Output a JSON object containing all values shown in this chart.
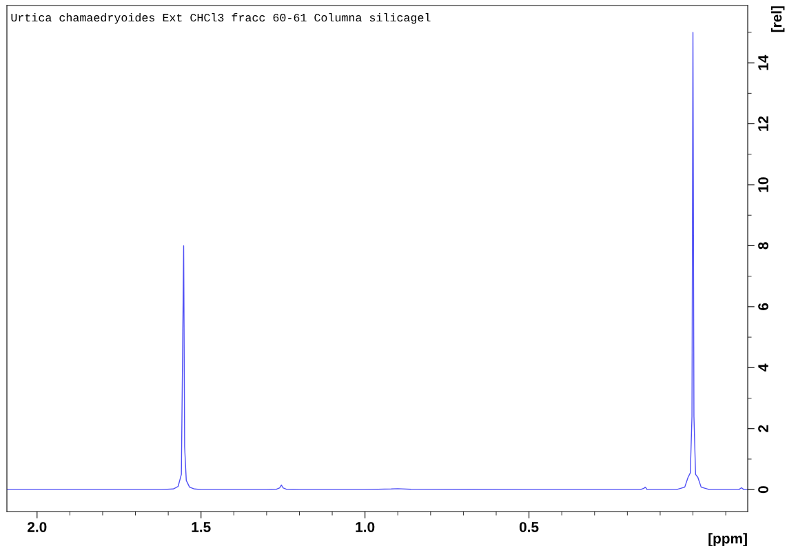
{
  "chart_data": {
    "type": "line",
    "xlabel": "[ppm]",
    "ylabel": "[rel]",
    "annotations": [
      "Urtica chamaedryoides Ext CHCl3 fracc 60-61 Columna silicagel"
    ],
    "x": [
      2.09,
      1.8,
      1.62,
      1.585,
      1.57,
      1.56,
      1.555,
      1.553,
      1.55,
      1.545,
      1.535,
      1.52,
      1.5,
      1.3,
      1.27,
      1.26,
      1.255,
      1.25,
      1.24,
      1.2,
      1.0,
      0.92,
      0.9,
      0.86,
      0.5,
      0.16,
      0.15,
      0.145,
      0.14,
      0.05,
      0.025,
      0.015,
      0.008,
      0.003,
      0.0,
      -0.003,
      -0.008,
      -0.015,
      -0.025,
      -0.05,
      -0.14,
      -0.148,
      -0.155,
      -0.167
    ],
    "series": [
      {
        "color": "#4f4ff5",
        "values": [
          0.0,
          0.0,
          0.0,
          0.02,
          0.1,
          0.5,
          5.8,
          8.0,
          1.4,
          0.3,
          0.08,
          0.02,
          0.0,
          0.0,
          0.01,
          0.06,
          0.15,
          0.06,
          0.01,
          0.0,
          0.0,
          0.02,
          0.03,
          0.01,
          0.0,
          0.0,
          0.04,
          0.08,
          0.0,
          0.0,
          0.08,
          0.4,
          0.55,
          2.4,
          15.0,
          2.4,
          0.5,
          0.4,
          0.08,
          0.0,
          0.0,
          0.06,
          0.0,
          0.0
        ]
      }
    ],
    "xlim": [
      2.092,
      -0.167
    ],
    "xticks": [
      {
        "value": 2,
        "label": "2.0"
      },
      1.5,
      {
        "value": 1,
        "label": "1.0"
      },
      0.5
    ],
    "ylim": [
      -0.72,
      15.88
    ],
    "yticks": [
      0,
      2,
      4,
      6,
      8,
      10,
      12,
      14
    ],
    "grid": false,
    "legend": false,
    "marker": "none",
    "line_style": "solid"
  }
}
